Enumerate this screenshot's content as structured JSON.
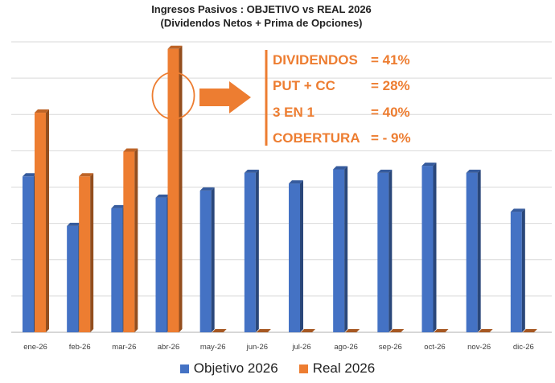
{
  "chart_data": {
    "type": "bar",
    "title": "Ingresos Pasivos : OBJETIVO vs REAL 2026",
    "subtitle": "(Dividendos Netos + Prima de Opciones)",
    "categories": [
      "ene-26",
      "feb-26",
      "mar-26",
      "abr-26",
      "may-26",
      "jun-26",
      "jul-26",
      "ago-26",
      "sep-26",
      "oct-26",
      "nov-26",
      "dic-26"
    ],
    "series": [
      {
        "name": "Objetivo 2026",
        "color": "#4472C4",
        "values": [
          4.4,
          3.0,
          3.5,
          3.8,
          4.0,
          4.5,
          4.2,
          4.6,
          4.5,
          4.7,
          4.5,
          3.4
        ]
      },
      {
        "name": "Real 2026",
        "color": "#ED7D31",
        "values": [
          6.2,
          4.4,
          5.1,
          8.0,
          0,
          0,
          0,
          0,
          0,
          0,
          0,
          0
        ]
      }
    ],
    "ylim": [
      0,
      8.2
    ],
    "yticks": 8,
    "grid": true,
    "legend": "bottom",
    "highlight_category": "abr-26",
    "annotations": [
      {
        "label": "DIVIDENDOS",
        "value": "= 41%"
      },
      {
        "label": "PUT + CC",
        "value": "= 28%"
      },
      {
        "label": "3 EN 1",
        "value": "= 40%"
      },
      {
        "label": "COBERTURA",
        "value": "= - 9%"
      }
    ]
  }
}
